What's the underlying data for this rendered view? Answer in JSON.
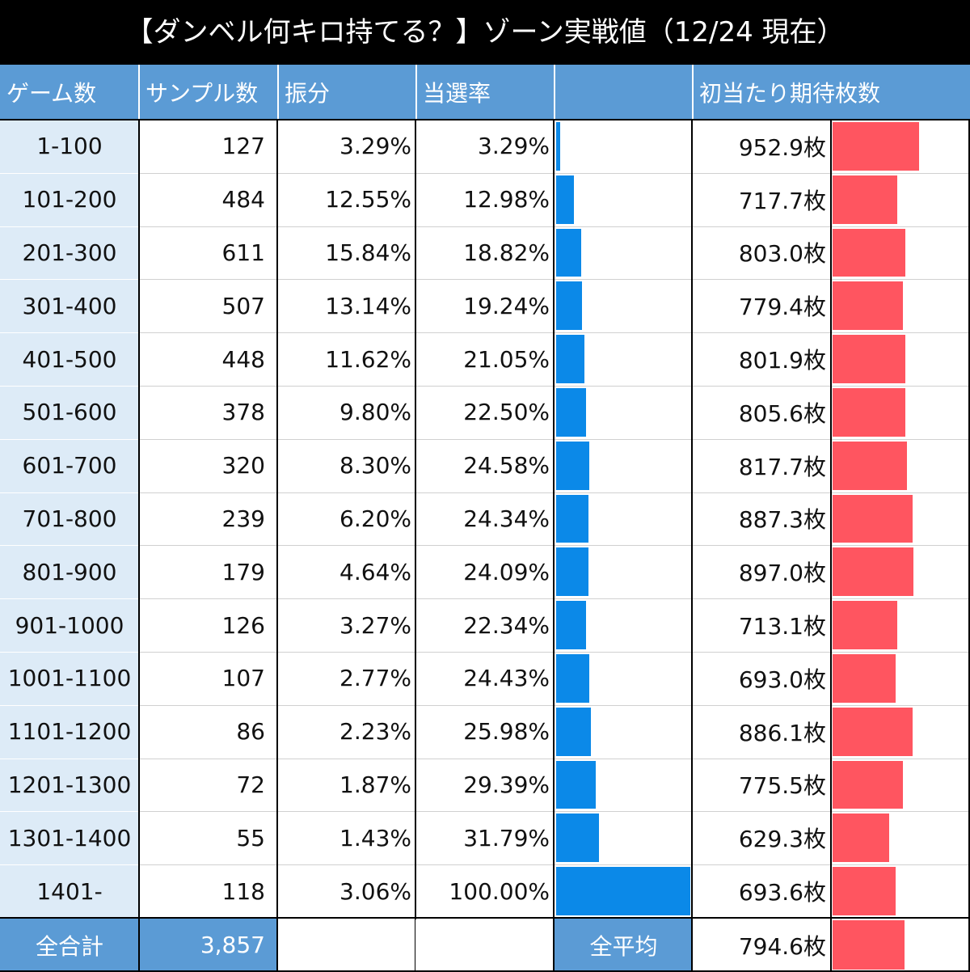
{
  "title": "【ダンベル何キロ持てる？】ゾーン実戦値（12/24 現在）",
  "headers": {
    "games": "ゲーム数",
    "samples": "サンプル数",
    "distribution": "振分",
    "win_rate": "当選率",
    "win_rate_bar": "",
    "expected_medals": "初当たり期待枚数"
  },
  "colors": {
    "header_bg": "#5b9bd5",
    "first_col_bg": "#ddebf7",
    "win_rate_bar": "#0b89e8",
    "medal_bar": "#ff5560",
    "title_bg": "#000000"
  },
  "chart_data": {
    "type": "table",
    "title": "【ダンベル何キロ持てる？】ゾーン実戦値（12/24 現在）",
    "columns": [
      "ゲーム数",
      "サンプル数",
      "振分",
      "当選率",
      "",
      "初当たり期待枚数"
    ],
    "rows": [
      {
        "games": "1-100",
        "samples": "127",
        "distribution": "3.29%",
        "win_rate": "3.29%",
        "win_rate_value": 3.29,
        "medals": "952.9枚",
        "medals_value": 952.9
      },
      {
        "games": "101-200",
        "samples": "484",
        "distribution": "12.55%",
        "win_rate": "12.98%",
        "win_rate_value": 12.98,
        "medals": "717.7枚",
        "medals_value": 717.7
      },
      {
        "games": "201-300",
        "samples": "611",
        "distribution": "15.84%",
        "win_rate": "18.82%",
        "win_rate_value": 18.82,
        "medals": "803.0枚",
        "medals_value": 803.0
      },
      {
        "games": "301-400",
        "samples": "507",
        "distribution": "13.14%",
        "win_rate": "19.24%",
        "win_rate_value": 19.24,
        "medals": "779.4枚",
        "medals_value": 779.4
      },
      {
        "games": "401-500",
        "samples": "448",
        "distribution": "11.62%",
        "win_rate": "21.05%",
        "win_rate_value": 21.05,
        "medals": "801.9枚",
        "medals_value": 801.9
      },
      {
        "games": "501-600",
        "samples": "378",
        "distribution": "9.80%",
        "win_rate": "22.50%",
        "win_rate_value": 22.5,
        "medals": "805.6枚",
        "medals_value": 805.6
      },
      {
        "games": "601-700",
        "samples": "320",
        "distribution": "8.30%",
        "win_rate": "24.58%",
        "win_rate_value": 24.58,
        "medals": "817.7枚",
        "medals_value": 817.7
      },
      {
        "games": "701-800",
        "samples": "239",
        "distribution": "6.20%",
        "win_rate": "24.34%",
        "win_rate_value": 24.34,
        "medals": "887.3枚",
        "medals_value": 887.3
      },
      {
        "games": "801-900",
        "samples": "179",
        "distribution": "4.64%",
        "win_rate": "24.09%",
        "win_rate_value": 24.09,
        "medals": "897.0枚",
        "medals_value": 897.0
      },
      {
        "games": "901-1000",
        "samples": "126",
        "distribution": "3.27%",
        "win_rate": "22.34%",
        "win_rate_value": 22.34,
        "medals": "713.1枚",
        "medals_value": 713.1
      },
      {
        "games": "1001-1100",
        "samples": "107",
        "distribution": "2.77%",
        "win_rate": "24.43%",
        "win_rate_value": 24.43,
        "medals": "693.0枚",
        "medals_value": 693.0
      },
      {
        "games": "1101-1200",
        "samples": "86",
        "distribution": "2.23%",
        "win_rate": "25.98%",
        "win_rate_value": 25.98,
        "medals": "886.1枚",
        "medals_value": 886.1
      },
      {
        "games": "1201-1300",
        "samples": "72",
        "distribution": "1.87%",
        "win_rate": "29.39%",
        "win_rate_value": 29.39,
        "medals": "775.5枚",
        "medals_value": 775.5
      },
      {
        "games": "1301-1400",
        "samples": "55",
        "distribution": "1.43%",
        "win_rate": "31.79%",
        "win_rate_value": 31.79,
        "medals": "629.3枚",
        "medals_value": 629.3
      },
      {
        "games": "1401-",
        "samples": "118",
        "distribution": "3.06%",
        "win_rate": "100.00%",
        "win_rate_value": 100.0,
        "medals": "693.6枚",
        "medals_value": 693.6
      }
    ],
    "footer": {
      "total_label": "全合計",
      "total_samples": "3,857",
      "average_label": "全平均",
      "average_medals": "794.6枚",
      "average_medals_value": 794.6
    },
    "win_rate_bar_range": [
      0,
      100
    ]
  }
}
